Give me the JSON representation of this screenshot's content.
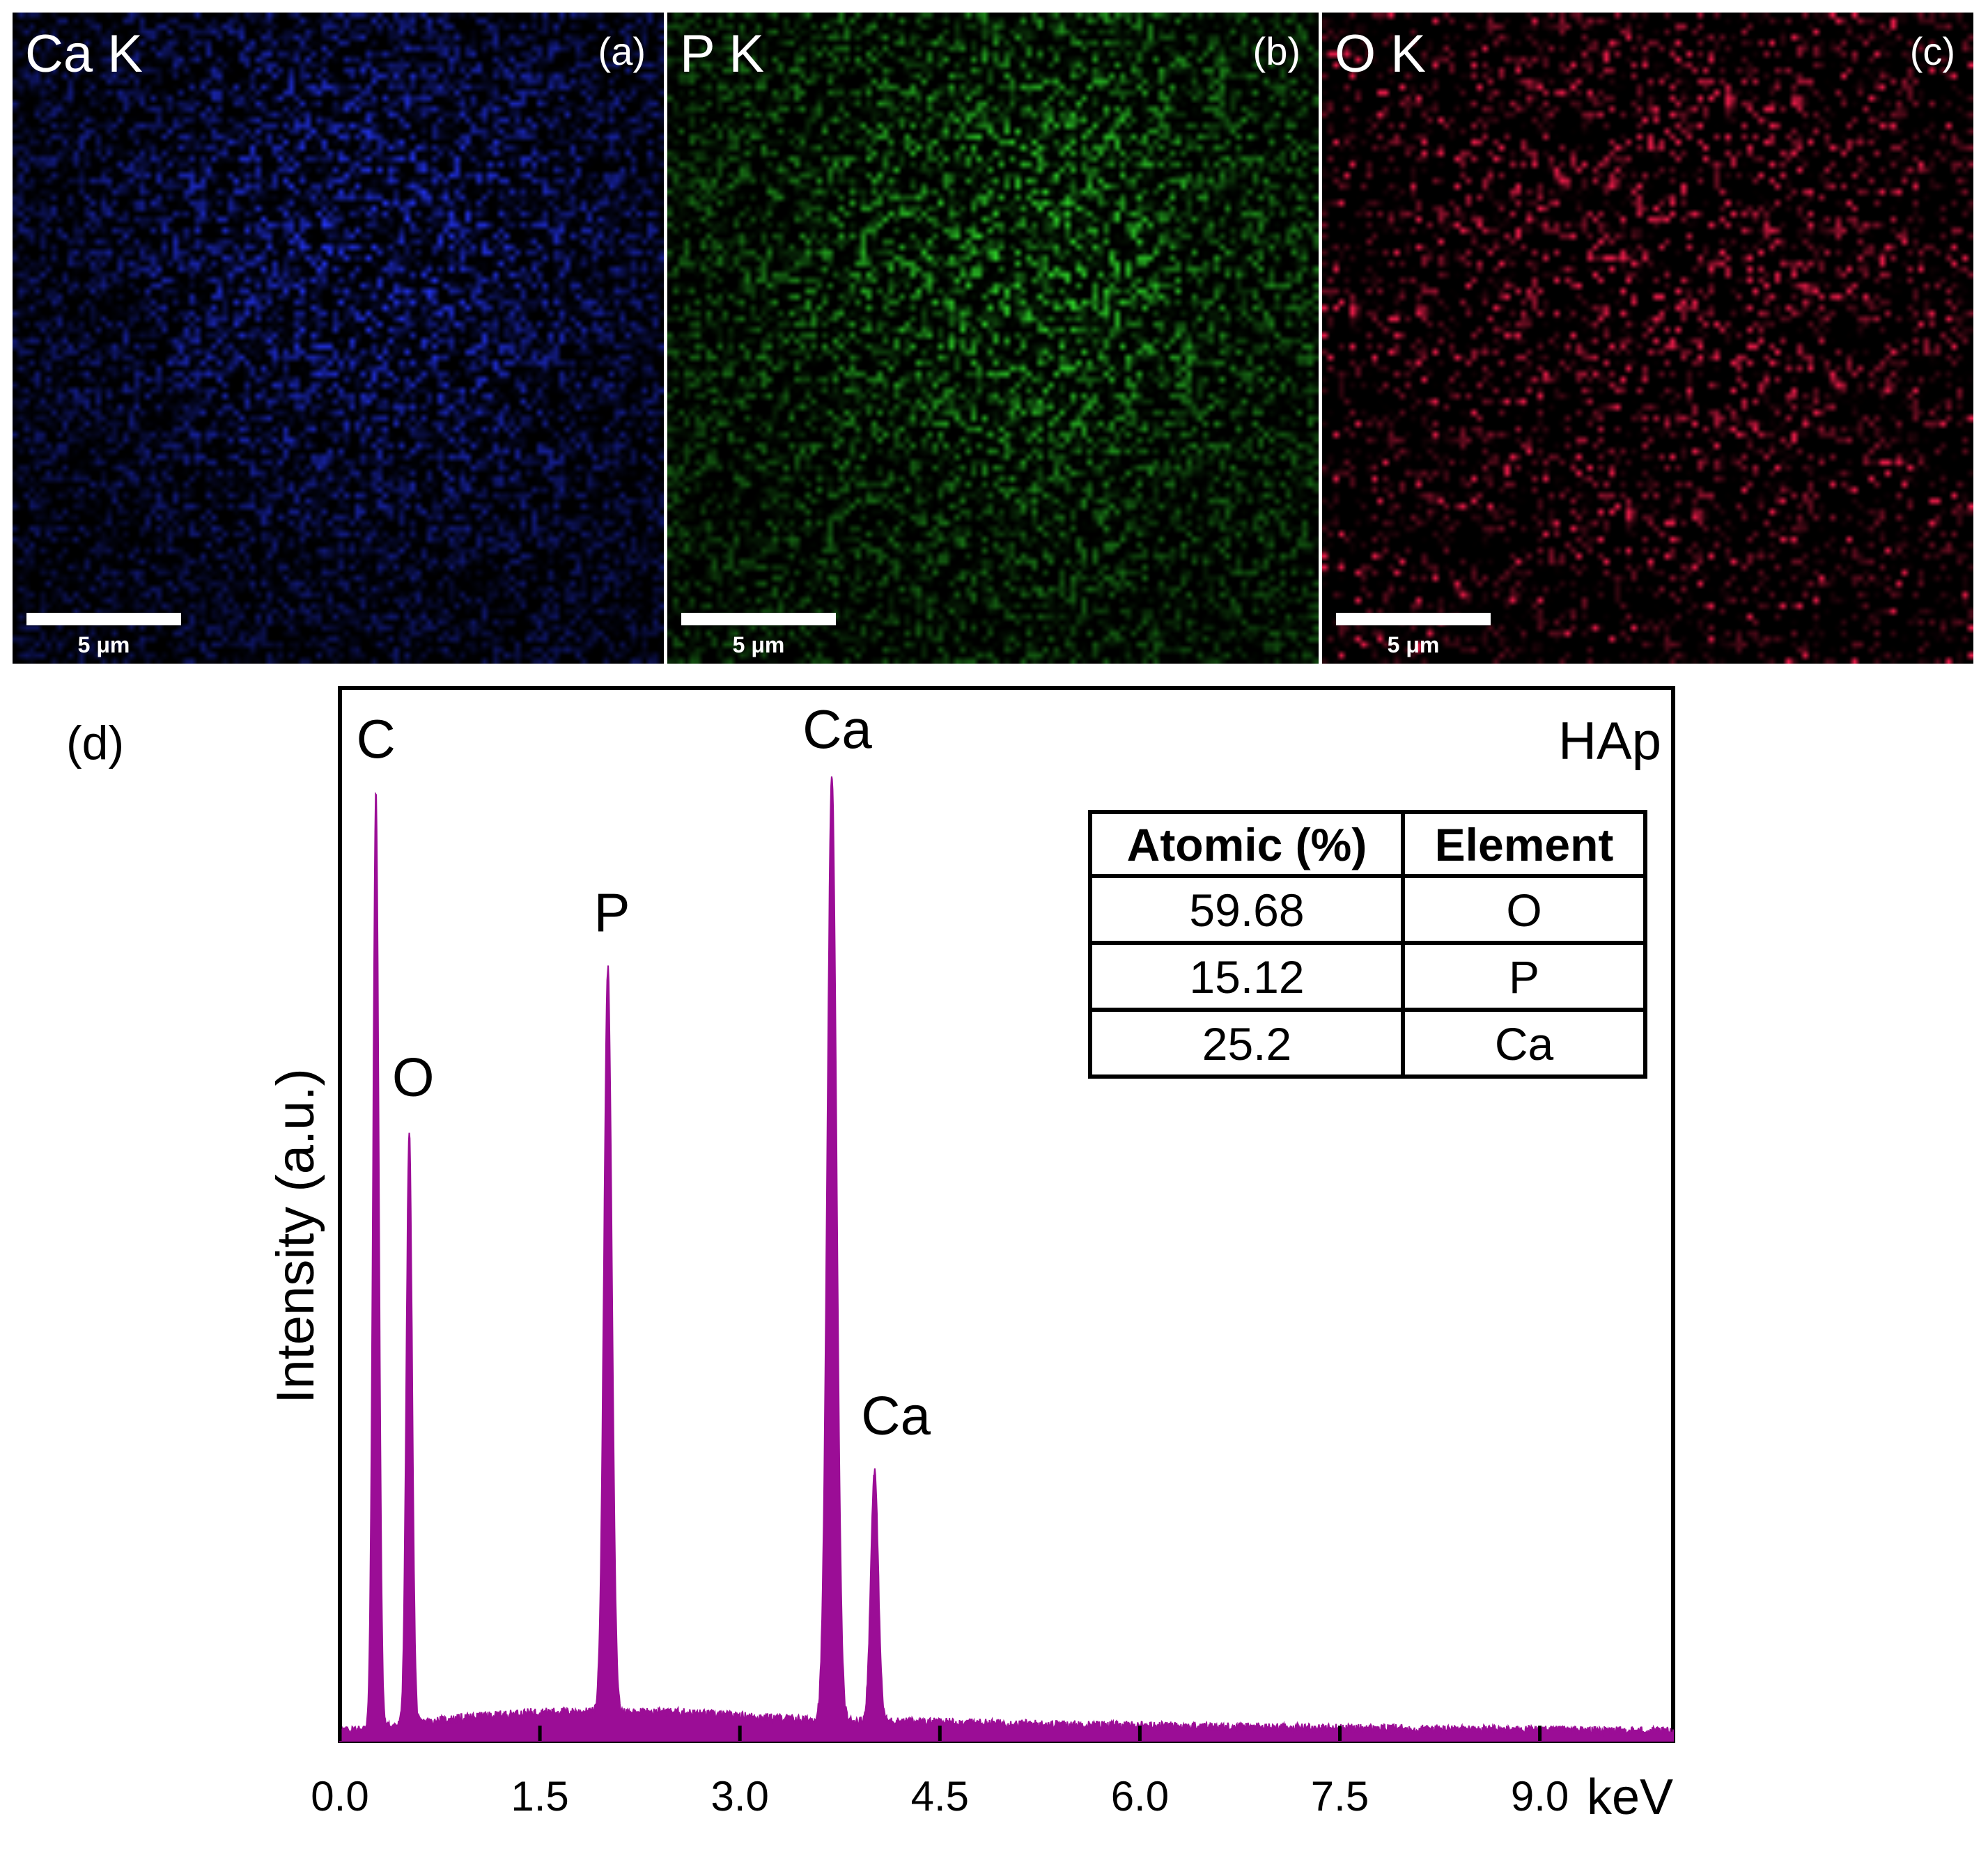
{
  "maps": [
    {
      "element": "Ca K",
      "letter": "(a)",
      "scale": "5 μm",
      "color": "#2436ff"
    },
    {
      "element": "P K",
      "letter": "(b)",
      "scale": "5 μm",
      "color": "#2fd92a"
    },
    {
      "element": "O K",
      "letter": "(c)",
      "scale": "5 μm",
      "color": "#ff1e50"
    }
  ],
  "spectrum": {
    "panel_letter": "(d)",
    "sample": "HAp",
    "peak_labels": [
      "C",
      "O",
      "P",
      "Ca",
      "Ca"
    ],
    "table": {
      "headers": [
        "Atomic (%)",
        "Element"
      ],
      "rows": [
        [
          "59.68",
          "O"
        ],
        [
          "15.12",
          "P"
        ],
        [
          "25.2",
          "Ca"
        ]
      ]
    }
  },
  "chart_data": {
    "type": "area",
    "xlabel": "keV",
    "ylabel": "Intensity (a.u.)",
    "xlim": [
      0,
      10
    ],
    "ylim": [
      0,
      100
    ],
    "xticks": [
      "0.0",
      "1.5",
      "3.0",
      "4.5",
      "6.0",
      "7.5",
      "9.0"
    ],
    "fill_color": "#9b0d96",
    "peaks": [
      {
        "label": "C",
        "x": 0.27,
        "y": 98
      },
      {
        "label": "O",
        "x": 0.52,
        "y": 63
      },
      {
        "label": "P",
        "x": 2.01,
        "y": 80
      },
      {
        "label": "Ca",
        "x": 3.69,
        "y": 100
      },
      {
        "label": "Ca",
        "x": 4.01,
        "y": 28
      }
    ],
    "background": [
      [
        0,
        1.0
      ],
      [
        1.0,
        2.5
      ],
      [
        1.5,
        3.0
      ],
      [
        2.5,
        3.0
      ],
      [
        3.5,
        2.2
      ],
      [
        5.0,
        1.8
      ],
      [
        7.0,
        1.4
      ],
      [
        10.0,
        1.0
      ]
    ]
  }
}
